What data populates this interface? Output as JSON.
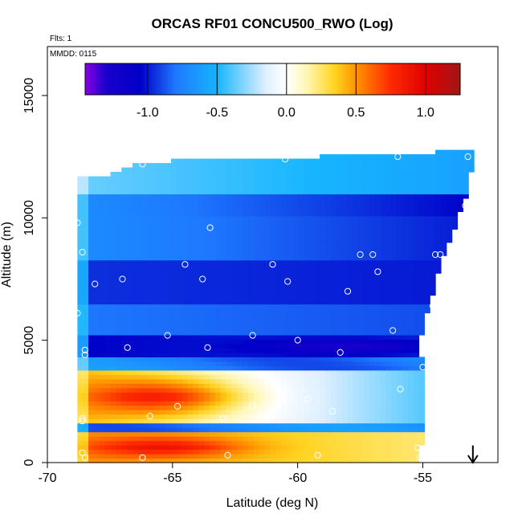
{
  "chart_data": {
    "type": "heatmap",
    "title": "ORCAS RF01 CONCU500_RWO (Log)",
    "annotations": [
      "Flts: 1",
      "MMDD: 0115"
    ],
    "xlabel": "Latitude (deg N)",
    "ylabel": "Altitude (m)",
    "xlim": [
      -70,
      -52
    ],
    "ylim": [
      0,
      17000
    ],
    "xticks": [
      -70,
      -65,
      -60,
      -55
    ],
    "xtick_labels": [
      "-70",
      "-65",
      "-60",
      "-55"
    ],
    "yticks": [
      0,
      5000,
      10000,
      15000
    ],
    "ytick_labels": [
      "0",
      "5000",
      "10000",
      "15000"
    ],
    "colorbar": {
      "range": [
        -1.45,
        1.25
      ],
      "ticks": [
        -1.0,
        -0.5,
        0.0,
        0.5,
        1.0
      ],
      "tick_labels": [
        "-1.0",
        "-0.5",
        "0.0",
        "0.5",
        "1.0"
      ],
      "stops": [
        [
          -1.45,
          "#8a00e6"
        ],
        [
          -1.3,
          "#1a00cc"
        ],
        [
          -1.05,
          "#0000c8"
        ],
        [
          -0.8,
          "#1e78ff"
        ],
        [
          -0.5,
          "#16b5ff"
        ],
        [
          -0.15,
          "#dff0ff"
        ],
        [
          0.0,
          "#ffffff"
        ],
        [
          0.15,
          "#fff6b0"
        ],
        [
          0.35,
          "#ffd21e"
        ],
        [
          0.5,
          "#ff9400"
        ],
        [
          0.75,
          "#ff2a00"
        ],
        [
          1.0,
          "#e00000"
        ],
        [
          1.25,
          "#a21616"
        ]
      ]
    },
    "field": {
      "lat_range": [
        -68.8,
        -53.0
      ],
      "alt_range": [
        0,
        12800
      ],
      "top_boundary": [
        [
          -68.8,
          11700
        ],
        [
          -67.5,
          11700
        ],
        [
          -66.5,
          12200
        ],
        [
          -60,
          12400
        ],
        [
          -56,
          12500
        ],
        [
          -53.3,
          12700
        ]
      ],
      "right_boundary": [
        [
          0,
          -55.3
        ],
        [
          1500,
          -55.0
        ],
        [
          5000,
          -55.2
        ],
        [
          8000,
          -54.4
        ],
        [
          11000,
          -53.3
        ],
        [
          12800,
          -53.0
        ]
      ],
      "layers": [
        {
          "alt_range": [
            11000,
            12800
          ],
          "south": -0.35,
          "north": -0.6
        },
        {
          "alt_range": [
            10000,
            11000
          ],
          "south": -0.7,
          "north": -1.05
        },
        {
          "alt_range": [
            8300,
            10000
          ],
          "south": -0.7,
          "north": -1.0
        },
        {
          "alt_range": [
            8300,
            8800
          ],
          "south": -0.9,
          "north": -1.1,
          "core": {
            "lat": -57.5,
            "value": -1.35
          }
        },
        {
          "alt_range": [
            6500,
            8300
          ],
          "south": -0.95,
          "north": -1.0
        },
        {
          "alt_range": [
            5200,
            6500
          ],
          "south": -0.8,
          "north": -0.9
        },
        {
          "alt_range": [
            4300,
            5200
          ],
          "south": -1.05,
          "north": -0.95,
          "core": {
            "lat": -58.0,
            "value": -1.3
          }
        },
        {
          "alt_range": [
            1600,
            3800
          ],
          "south": 0.4,
          "north": -0.5,
          "core": {
            "lat": -65.8,
            "value": 0.85
          }
        },
        {
          "alt_range": [
            0,
            1300
          ],
          "south": 0.5,
          "north": 0.2,
          "core": {
            "lat": -65.5,
            "value": 0.9
          }
        }
      ]
    },
    "observation_points": [
      [
        -66.2,
        12200
      ],
      [
        -60.5,
        12400
      ],
      [
        -56.0,
        12500
      ],
      [
        -53.2,
        12500
      ],
      [
        -68.8,
        9800
      ],
      [
        -68.6,
        8600
      ],
      [
        -63.5,
        9600
      ],
      [
        -53.3,
        10500
      ],
      [
        -53.0,
        10100
      ],
      [
        -64.5,
        8100
      ],
      [
        -61.0,
        8100
      ],
      [
        -57.5,
        8500
      ],
      [
        -57.0,
        8500
      ],
      [
        -54.5,
        8500
      ],
      [
        -54.3,
        8500
      ],
      [
        -68.1,
        7300
      ],
      [
        -67.0,
        7500
      ],
      [
        -63.8,
        7500
      ],
      [
        -60.4,
        7400
      ],
      [
        -56.8,
        7800
      ],
      [
        -58.0,
        7000
      ],
      [
        -68.8,
        6100
      ],
      [
        -54.6,
        6400
      ],
      [
        -65.2,
        5200
      ],
      [
        -61.8,
        5200
      ],
      [
        -60.0,
        5000
      ],
      [
        -56.2,
        5400
      ],
      [
        -68.5,
        4600
      ],
      [
        -68.5,
        4400
      ],
      [
        -66.8,
        4700
      ],
      [
        -63.6,
        4700
      ],
      [
        -58.3,
        4500
      ],
      [
        -55.0,
        3900
      ],
      [
        -55.9,
        3000
      ],
      [
        -59.6,
        2600
      ],
      [
        -58.6,
        2100
      ],
      [
        -64.8,
        2300
      ],
      [
        -61.8,
        2300
      ],
      [
        -65.9,
        1900
      ],
      [
        -63.0,
        1800
      ],
      [
        -68.6,
        1800
      ],
      [
        -68.6,
        1700
      ],
      [
        -55.2,
        600
      ],
      [
        -68.6,
        400
      ],
      [
        -68.5,
        200
      ],
      [
        -66.2,
        200
      ],
      [
        -62.8,
        300
      ],
      [
        -59.2,
        300
      ],
      [
        -55.1,
        200
      ]
    ],
    "arrow": {
      "lat": -53.0,
      "alt_from": 700,
      "alt_to": 0
    }
  },
  "colors": {
    "frame": "#000000",
    "point": "#ffffff",
    "background": "#ffffff"
  }
}
